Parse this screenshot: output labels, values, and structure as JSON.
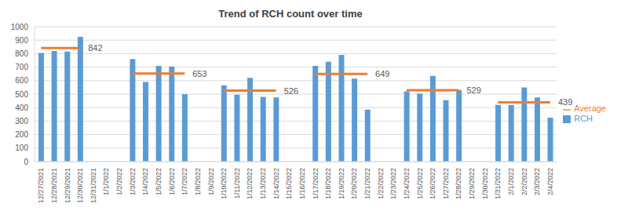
{
  "chart_data": {
    "type": "bar",
    "title": "Trend of RCH count over time",
    "categories": [
      "12/27/2021",
      "12/28/2021",
      "12/29/2021",
      "12/30/2021",
      "12/31/2021",
      "1/1/2022",
      "1/2/2022",
      "1/3/2022",
      "1/4/2022",
      "1/5/2022",
      "1/6/2022",
      "1/7/2022",
      "1/8/2022",
      "1/9/2022",
      "1/10/2022",
      "1/11/2022",
      "1/12/2022",
      "1/13/2022",
      "1/14/2022",
      "1/15/2022",
      "1/16/2022",
      "1/17/2022",
      "1/18/2022",
      "1/19/2022",
      "1/20/2022",
      "1/21/2022",
      "1/22/2022",
      "1/23/2022",
      "1/24/2022",
      "1/25/2022",
      "1/26/2022",
      "1/27/2022",
      "1/28/2022",
      "1/29/2022",
      "1/30/2022",
      "1/31/2022",
      "2/1/2022",
      "2/2/2022",
      "2/3/2022",
      "2/4/2022"
    ],
    "series": [
      {
        "name": "RCH",
        "type": "bar",
        "color": "#5b9bd5",
        "values": [
          805,
          820,
          815,
          925,
          null,
          null,
          null,
          760,
          590,
          710,
          705,
          500,
          null,
          null,
          565,
          495,
          620,
          480,
          475,
          null,
          null,
          710,
          740,
          790,
          615,
          385,
          null,
          null,
          520,
          505,
          635,
          455,
          530,
          null,
          null,
          420,
          420,
          550,
          475,
          325
        ]
      },
      {
        "name": "Average",
        "type": "line",
        "color": "#ed7d31",
        "data_labels": true,
        "values": [
          842,
          842,
          842,
          842,
          null,
          null,
          null,
          653,
          653,
          653,
          653,
          653,
          null,
          null,
          526,
          526,
          526,
          526,
          526,
          null,
          null,
          649,
          649,
          649,
          649,
          649,
          null,
          null,
          529,
          529,
          529,
          529,
          529,
          null,
          null,
          439,
          439,
          439,
          439,
          439
        ]
      }
    ],
    "ylim": [
      0,
      1000
    ],
    "yticks": [
      0,
      100,
      200,
      300,
      400,
      500,
      600,
      700,
      800,
      900,
      1000
    ],
    "grid": true,
    "legend": "right"
  }
}
